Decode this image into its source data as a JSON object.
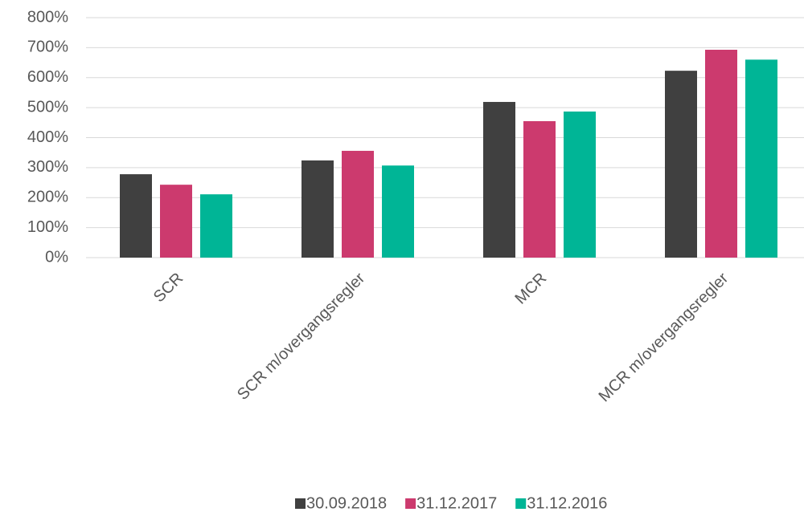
{
  "chart_data": {
    "type": "bar",
    "categories": [
      "SCR",
      "SCR m/overgangsregler",
      "MCR",
      "MCR m/overgangsregler"
    ],
    "series": [
      {
        "name": "30.09.2018",
        "color": "#404040",
        "values": [
          278,
          324,
          519,
          623
        ]
      },
      {
        "name": "31.12.2017",
        "color": "#cc3a6e",
        "values": [
          243,
          356,
          455,
          693
        ]
      },
      {
        "name": "31.12.2016",
        "color": "#00b596",
        "values": [
          211,
          307,
          487,
          660
        ]
      }
    ],
    "ylim": [
      0,
      800
    ],
    "yticks": [
      {
        "value": 0,
        "label": "0%"
      },
      {
        "value": 100,
        "label": "100%"
      },
      {
        "value": 200,
        "label": "200%"
      },
      {
        "value": 300,
        "label": "300%"
      },
      {
        "value": 400,
        "label": "400%"
      },
      {
        "value": 500,
        "label": "500%"
      },
      {
        "value": 600,
        "label": "600%"
      },
      {
        "value": 700,
        "label": "700%"
      },
      {
        "value": 800,
        "label": "800%"
      }
    ],
    "grid": true,
    "legend": "bottom"
  }
}
